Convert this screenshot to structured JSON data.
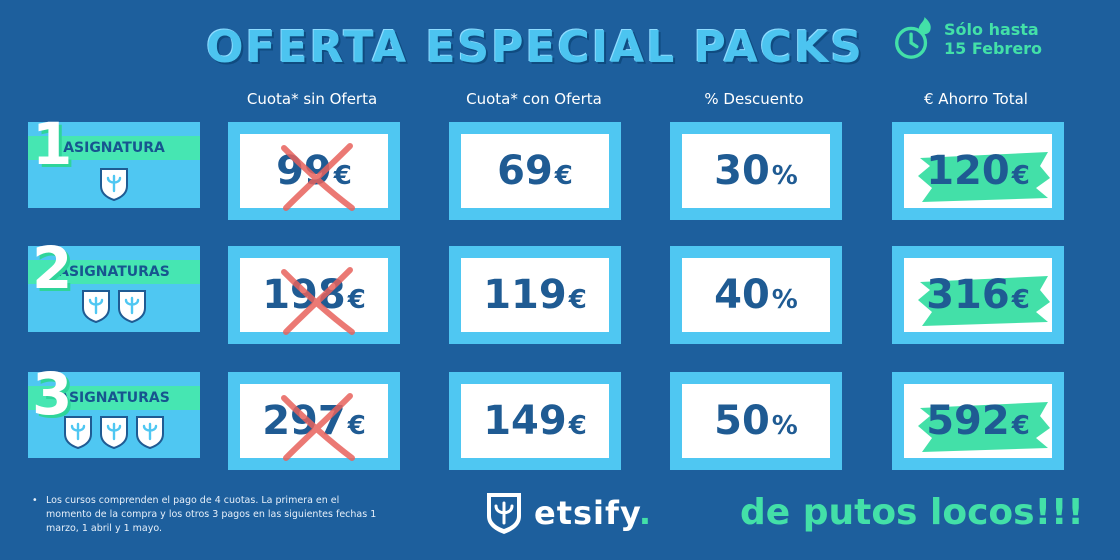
{
  "header": {
    "title": "OFERTA ESPECIAL PACKS",
    "deadline_line1": "Sólo hasta",
    "deadline_line2": "15 Febrero"
  },
  "columns": [
    "Cuota* sin Oferta",
    "Cuota* con Oferta",
    "% Descuento",
    "€ Ahorro Total"
  ],
  "rows": [
    {
      "number": "1",
      "label": "ASIGNATURA",
      "shields": 1,
      "price_without": "99",
      "price_with": "69",
      "discount": "30",
      "saving": "120"
    },
    {
      "number": "2",
      "label": "ASIGNATURAS",
      "shields": 2,
      "price_without": "198",
      "price_with": "119",
      "discount": "40",
      "saving": "316"
    },
    {
      "number": "3",
      "label": "ASIGNATURAS",
      "shields": 3,
      "price_without": "297",
      "price_with": "149",
      "discount": "50",
      "saving": "592"
    }
  ],
  "units": {
    "euro": "€",
    "percent": "%"
  },
  "footer": {
    "bullet": "•",
    "note": "Los cursos comprenden el pago de 4 cuotas. La primera en el momento de la compra y los otros 3 pagos en las siguientes fechas 1 marzo, 1 abril y 1 mayo.",
    "brand": "etsify",
    "brand_dot": ".",
    "tagline": "de putos locos!!!"
  },
  "colors": {
    "background": "#1d5f9d",
    "accent_blue": "#4fc7f2",
    "accent_green": "#43e0a8",
    "cross_red": "#e8615c",
    "value_text": "#1f5b93"
  },
  "icons": [
    "clock-flame-icon",
    "shield-logo-icon",
    "cross-mark-icon",
    "green-brush-highlight"
  ]
}
